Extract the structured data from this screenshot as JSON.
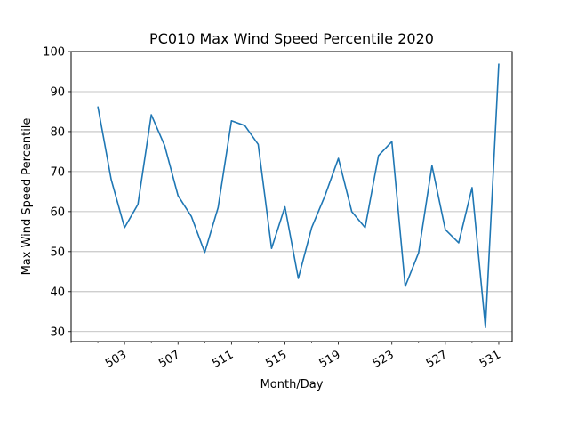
{
  "chart_data": {
    "type": "line",
    "title": "PC010 Max Wind Speed Percentile 2020",
    "xlabel": "Month/Day",
    "ylabel": "Max Wind Speed Percentile",
    "x_tick_labels": [
      "503",
      "507",
      "511",
      "515",
      "519",
      "523",
      "527",
      "531"
    ],
    "x_tick_values": [
      503,
      507,
      511,
      515,
      519,
      523,
      527,
      531
    ],
    "y_ticks": [
      30,
      40,
      50,
      60,
      70,
      80,
      90,
      100
    ],
    "xlim": [
      499.0,
      532.0
    ],
    "ylim": [
      27.5,
      100
    ],
    "grid": "y-major",
    "line_color": "#1f77b4",
    "series": [
      {
        "x": [
          501,
          502,
          503,
          504,
          505,
          506,
          507,
          508,
          509,
          510,
          511,
          512,
          513,
          514,
          515,
          516,
          517,
          518,
          519,
          520,
          521,
          522,
          523,
          524,
          525,
          526,
          527,
          528,
          529,
          530,
          531
        ],
        "values": [
          86.3,
          68.0,
          56.0,
          61.8,
          84.2,
          76.5,
          64.0,
          58.8,
          49.8,
          61.0,
          82.7,
          81.5,
          76.8,
          50.8,
          61.2,
          43.3,
          56.0,
          64.0,
          73.3,
          60.0,
          56.0,
          74.0,
          77.5,
          41.3,
          49.7,
          71.5,
          55.5,
          52.2,
          66.0,
          31.0,
          97.0
        ]
      }
    ]
  }
}
